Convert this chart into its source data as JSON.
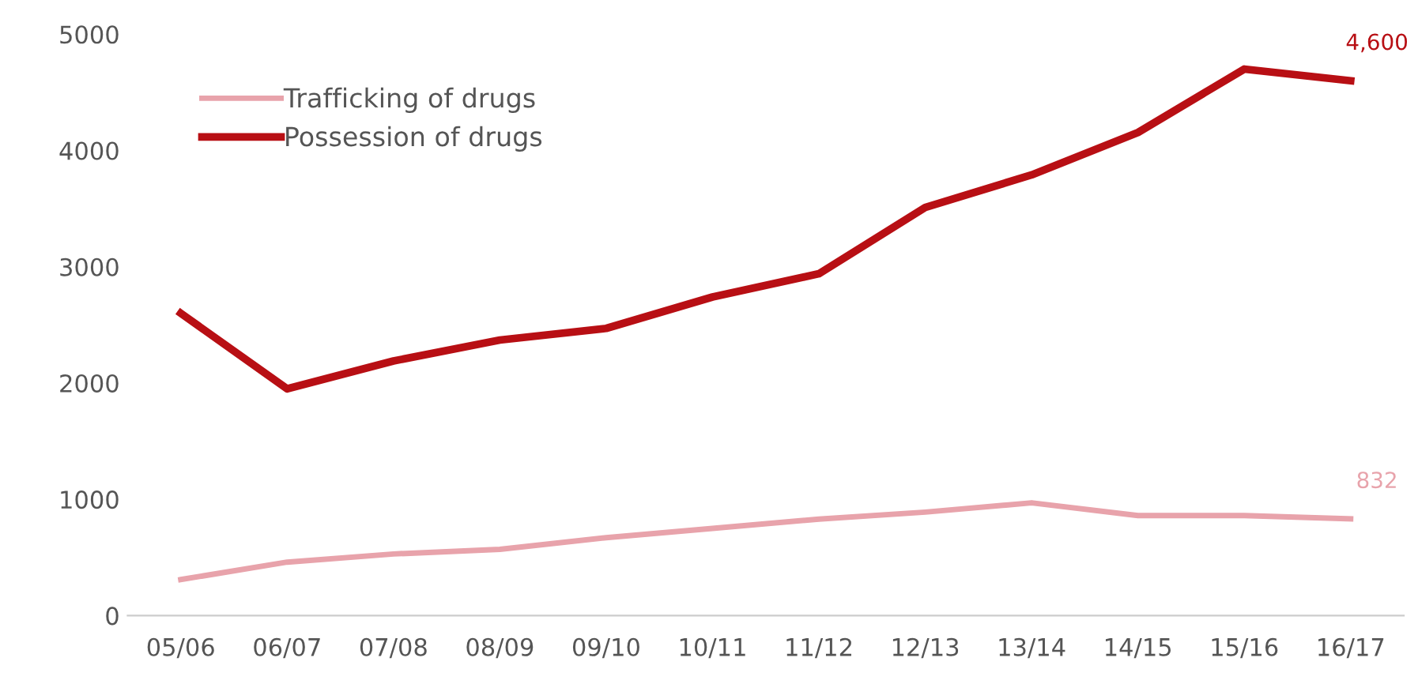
{
  "chart_data": {
    "type": "line",
    "categories": [
      "05/06",
      "06/07",
      "07/08",
      "08/09",
      "09/10",
      "10/11",
      "11/12",
      "12/13",
      "13/14",
      "14/15",
      "15/16",
      "16/17"
    ],
    "series": [
      {
        "name": "Trafficking of drugs",
        "color": "#e8a3ab",
        "values": [
          310,
          460,
          530,
          570,
          670,
          750,
          830,
          890,
          970,
          860,
          860,
          832
        ],
        "value_labels": [
          null,
          null,
          null,
          null,
          null,
          null,
          null,
          null,
          null,
          null,
          null,
          "832"
        ]
      },
      {
        "name": "Possession of drugs",
        "color": "#b80f14",
        "values": [
          2600,
          1950,
          2190,
          2370,
          2470,
          2740,
          2940,
          3510,
          3790,
          4155,
          4700,
          4600
        ],
        "value_labels": [
          null,
          null,
          null,
          null,
          null,
          null,
          null,
          null,
          null,
          null,
          null,
          "4,600"
        ]
      }
    ],
    "ylim": [
      0,
      5000
    ],
    "yticks": [
      0,
      1000,
      2000,
      3000,
      4000,
      5000
    ],
    "grid": false,
    "legend": "top left",
    "marker": "none",
    "line_style": "solid"
  }
}
